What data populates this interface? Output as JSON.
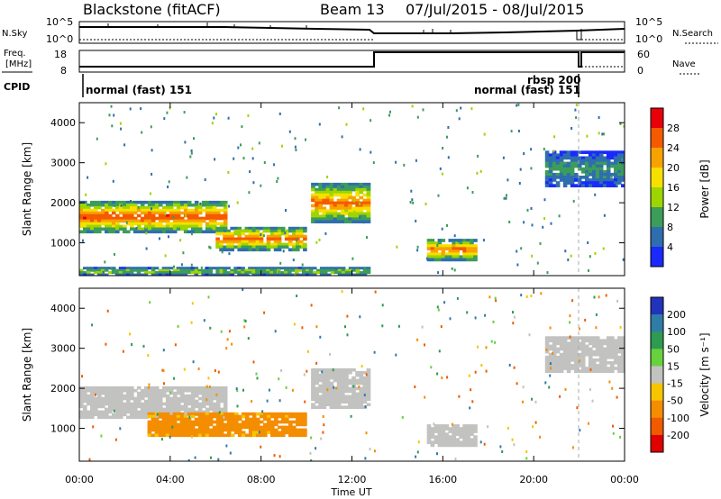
{
  "header": {
    "station": "Blackstone (fitACF)",
    "beam": "Beam 13",
    "date_range": "07/Jul/2015 - 08/Jul/2015"
  },
  "summary_panel": {
    "nsky_label": "N.Sky",
    "nsky_ticks": [
      "10^5",
      "10^0"
    ],
    "nsearch_label": "N.Search",
    "freq_label_line1": "Freq.",
    "freq_label_line2": "[MHz]",
    "freq_ticks": [
      "18",
      "8"
    ],
    "nave_ticks": [
      "60",
      "0"
    ],
    "nave_label": "Nave",
    "cpid_label": "CPID",
    "cpid_entries": [
      "normal (fast) 151",
      "rbsp 200",
      "normal (fast) 151"
    ]
  },
  "colorbars": {
    "power": {
      "label": "Power [dB]",
      "ticks": [
        "28",
        "24",
        "20",
        "16",
        "12",
        "8",
        "4"
      ],
      "colors": [
        "#e8000b",
        "#f55a00",
        "#f7a200",
        "#f5e000",
        "#9ed400",
        "#3c9d5a",
        "#2f6eae",
        "#1a2aff"
      ]
    },
    "velocity": {
      "label": "Velocity [m s⁻¹]",
      "ticks": [
        "200",
        "100",
        "50",
        "15",
        "-15",
        "-50",
        "-100",
        "-200"
      ],
      "colors": [
        "#2233bb",
        "#2f7ca8",
        "#2f9a52",
        "#67d23e",
        "#c2c2c0",
        "#f7c400",
        "#f48d00",
        "#f05a00",
        "#e00000"
      ]
    }
  },
  "axes": {
    "y_label": "Slant Range [km]",
    "y_ticks": [
      "4000",
      "3000",
      "2000",
      "1000"
    ],
    "x_label": "Time UT",
    "x_ticks": [
      "00:00",
      "04:00",
      "08:00",
      "12:00",
      "16:00",
      "20:00",
      "00:00"
    ]
  },
  "chart_data": [
    {
      "type": "heatmap",
      "title": "Power [dB]",
      "x_unit": "hours UT",
      "y_unit": "km",
      "xlim": [
        0,
        24
      ],
      "ylim": [
        180,
        4500
      ],
      "color_range": [
        0,
        32
      ],
      "echo_bands": [
        {
          "t_start": 0.0,
          "t_end": 6.5,
          "range_start_km": 1250,
          "range_end_km": 2050,
          "peak_power_db": 28
        },
        {
          "t_start": 6.0,
          "t_end": 10.0,
          "range_start_km": 800,
          "range_end_km": 1400,
          "peak_power_db": 26
        },
        {
          "t_start": 10.2,
          "t_end": 12.8,
          "range_start_km": 1500,
          "range_end_km": 2500,
          "peak_power_db": 26
        },
        {
          "t_start": 15.3,
          "t_end": 17.5,
          "range_start_km": 550,
          "range_end_km": 1100,
          "peak_power_db": 26
        },
        {
          "t_start": 0.0,
          "t_end": 12.8,
          "range_start_km": 180,
          "range_end_km": 400,
          "peak_power_db": 14
        },
        {
          "t_start": 20.5,
          "t_end": 24.0,
          "range_start_km": 2400,
          "range_end_km": 3300,
          "peak_power_db": 10
        }
      ]
    },
    {
      "type": "heatmap",
      "title": "Velocity [m s⁻¹]",
      "x_unit": "hours UT",
      "y_unit": "km",
      "xlim": [
        0,
        24
      ],
      "ylim": [
        180,
        4500
      ],
      "color_range": [
        -200,
        200
      ],
      "echo_bands": [
        {
          "t_start": 0.0,
          "t_end": 6.5,
          "range_start_km": 1250,
          "range_end_km": 2050,
          "velocity_ms": 0
        },
        {
          "t_start": 3.0,
          "t_end": 10.0,
          "range_start_km": 800,
          "range_end_km": 1400,
          "velocity_ms": -40
        },
        {
          "t_start": 10.2,
          "t_end": 12.8,
          "range_start_km": 1500,
          "range_end_km": 2500,
          "velocity_ms": 0
        },
        {
          "t_start": 15.3,
          "t_end": 17.5,
          "range_start_km": 550,
          "range_end_km": 1100,
          "velocity_ms": 0
        },
        {
          "t_start": 20.5,
          "t_end": 24.0,
          "range_start_km": 2400,
          "range_end_km": 3300,
          "velocity_ms": 0
        }
      ]
    }
  ]
}
